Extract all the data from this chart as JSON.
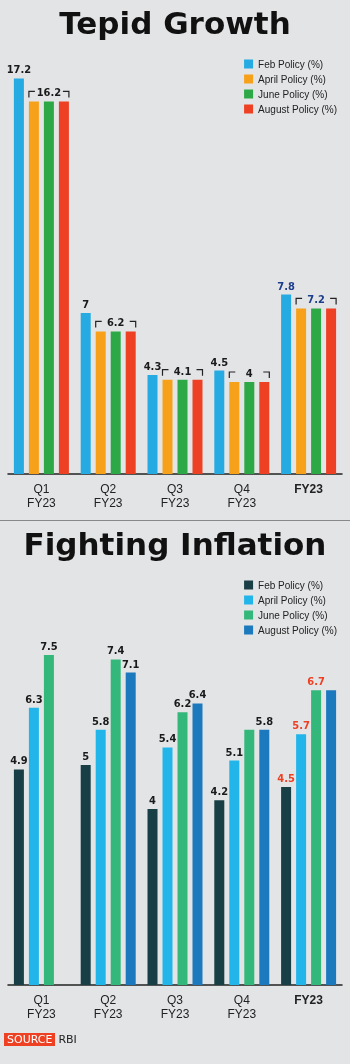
{
  "chart_data": [
    {
      "type": "bar",
      "title": "Tepid Growth",
      "categories": [
        "Q1 FY23",
        "Q2 FY23",
        "Q3 FY23",
        "Q4 FY23",
        "FY23"
      ],
      "legend": "top right",
      "series": [
        {
          "name": "Feb Policy (%)",
          "color": "#25aae1",
          "values": [
            17.2,
            7,
            4.3,
            4.5,
            7.8
          ],
          "value_labels": [
            "17.2",
            "7",
            "4.3",
            "4.5",
            "7.8"
          ]
        },
        {
          "name": "April Policy (%)",
          "color": "#f7a11a",
          "values": [
            16.2,
            6.2,
            4.1,
            4,
            7.2
          ],
          "value_labels": [
            null,
            null,
            null,
            null,
            null
          ]
        },
        {
          "name": "June Policy (%)",
          "color": "#2ca847",
          "values": [
            16.2,
            6.2,
            4.1,
            4,
            7.2
          ],
          "value_labels": [
            "16.2",
            "6.2",
            "4.1",
            "4",
            "7.2"
          ]
        },
        {
          "name": "August Policy (%)",
          "color": "#ee4023",
          "values": [
            16.2,
            6.2,
            4.1,
            4,
            7.2
          ],
          "value_labels": [
            null,
            null,
            null,
            null,
            null
          ]
        }
      ]
    },
    {
      "type": "bar",
      "title": "Fighting Inflation",
      "categories": [
        "Q1 FY23",
        "Q2 FY23",
        "Q3 FY23",
        "Q4 FY23",
        "FY23"
      ],
      "legend": "top right",
      "annotations": [
        "SOURCE RBI"
      ],
      "series": [
        {
          "name": "Feb Policy (%)",
          "color": "#173f45",
          "values": [
            4.9,
            5,
            4,
            4.2,
            4.5
          ],
          "value_labels": [
            "4.9",
            "5",
            "4",
            "4.2",
            "4.5"
          ]
        },
        {
          "name": "April Policy (%)",
          "color": "#22b5ea",
          "values": [
            6.3,
            5.8,
            5.4,
            5.1,
            5.7
          ],
          "value_labels": [
            "6.3",
            "5.8",
            "5.4",
            "5.1",
            "5.7"
          ]
        },
        {
          "name": "June Policy (%)",
          "color": "#34b77a",
          "values": [
            7.5,
            7.4,
            6.2,
            5.8,
            6.7
          ],
          "value_labels": [
            "7.5",
            "7.4",
            "6.2",
            null,
            "6.7"
          ]
        },
        {
          "name": "August Policy (%)",
          "color": "#1c79bd",
          "values": [
            null,
            7.1,
            6.4,
            5.8,
            6.7
          ],
          "value_labels": [
            null,
            "7.1",
            "6.4",
            "5.8",
            null
          ]
        }
      ]
    }
  ]
}
